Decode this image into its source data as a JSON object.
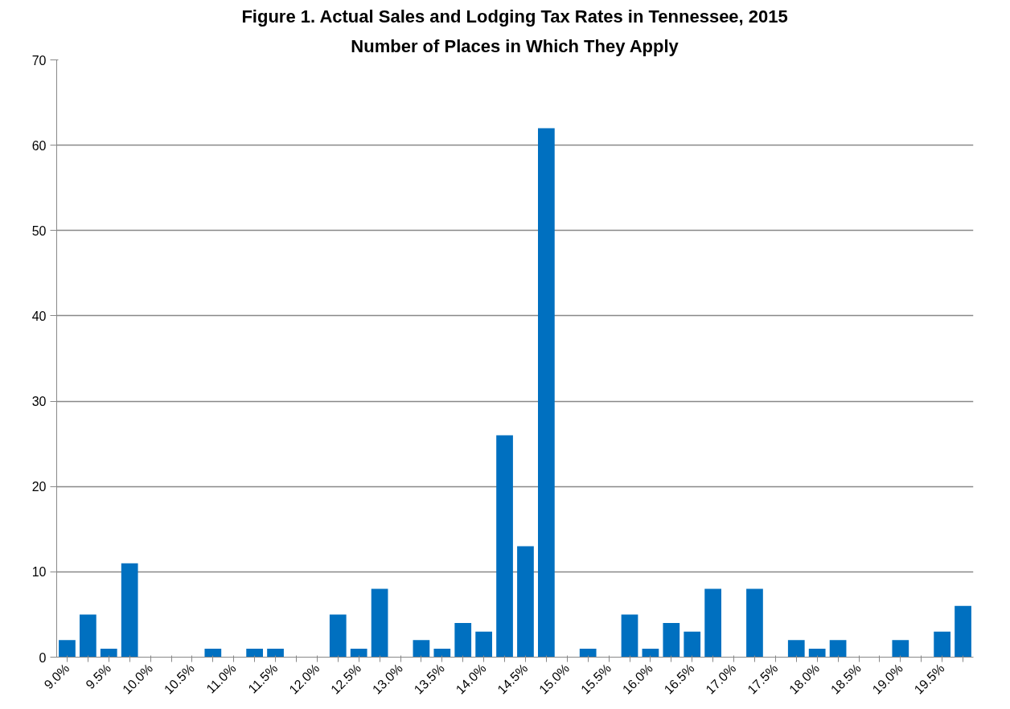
{
  "chart_data": {
    "type": "bar",
    "title": "Figure 1. Actual Sales and Lodging Tax Rates in Tennessee, 2015",
    "subtitle": "Number of Places in Which They Apply",
    "categories": [
      "9.0%",
      null,
      "9.5%",
      null,
      "10.0%",
      null,
      "10.5%",
      null,
      "11.0%",
      null,
      "11.5%",
      null,
      "12.0%",
      null,
      "12.5%",
      null,
      "13.0%",
      null,
      "13.5%",
      null,
      "14.0%",
      null,
      "14.5%",
      null,
      "15.0%",
      null,
      "15.5%",
      null,
      "16.0%",
      null,
      "16.5%",
      null,
      "17.0%",
      null,
      "17.5%",
      null,
      "18.0%",
      null,
      "18.5%",
      null,
      "19.0%",
      null,
      "19.5%",
      null
    ],
    "values": [
      2,
      5,
      1,
      11,
      0,
      0,
      0,
      1,
      0,
      1,
      1,
      0,
      0,
      5,
      1,
      8,
      0,
      2,
      1,
      4,
      3,
      26,
      13,
      62,
      0,
      1,
      0,
      5,
      1,
      4,
      3,
      8,
      0,
      8,
      0,
      2,
      1,
      2,
      0,
      0,
      2,
      0,
      3,
      6
    ],
    "color": "#0070c0",
    "ylim": [
      0,
      70
    ],
    "yticks": [
      0,
      10,
      20,
      30,
      40,
      50,
      60,
      70
    ],
    "grid": "y"
  }
}
